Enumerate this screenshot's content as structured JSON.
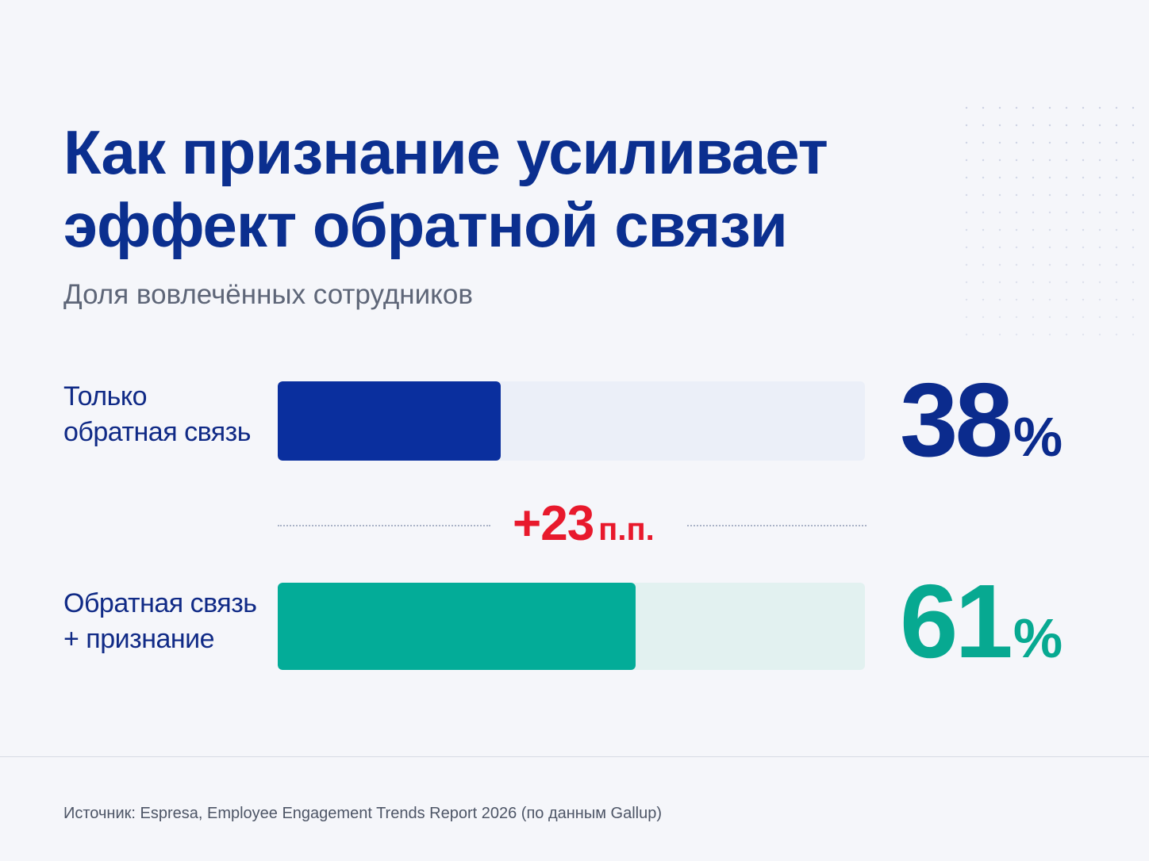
{
  "title": "Как признание усиливает эффект обратной связи",
  "subtitle": "Доля вовлечённых сотрудников",
  "chart_data": {
    "type": "bar",
    "orientation": "horizontal",
    "title": "Как признание усиливает эффект обратной связи",
    "subtitle": "Доля вовлечённых сотрудников",
    "categories": [
      "Только обратная связь",
      "Обратная связь + признание"
    ],
    "values": [
      38,
      61
    ],
    "value_labels": [
      "38",
      "61"
    ],
    "unit": "%",
    "xlim": [
      0,
      100
    ],
    "colors": [
      "#0a2f9e",
      "#03ac98"
    ],
    "annotation": {
      "value": "+23",
      "unit": "п.п.",
      "color": "#e8192c"
    },
    "source": "Источник: Espresa, Employee Engagement Trends Report 2026 (по данным Gallup)"
  },
  "rows": [
    {
      "label_line1": "Только",
      "label_line2": "обратная связь",
      "value": "38",
      "unit": "%"
    },
    {
      "label_line1": "Обратная связь",
      "label_line2": "+ признание",
      "value": "61",
      "unit": "%"
    }
  ],
  "difference": {
    "value": "+23",
    "unit": "п.п."
  },
  "source": "Источник: Espresa, Employee Engagement Trends Report 2026 (по данным Gallup)",
  "colors": {
    "title": "#0b2f8f",
    "bar_1": "#0a2f9e",
    "bar_2": "#03ac98",
    "track_1": "#ebeff8",
    "track_2": "#e2f1f0",
    "accent_red": "#e8192c",
    "background": "#f5f6fa"
  },
  "decoration": {
    "dot_grid": "dotted-pattern-decoration"
  }
}
